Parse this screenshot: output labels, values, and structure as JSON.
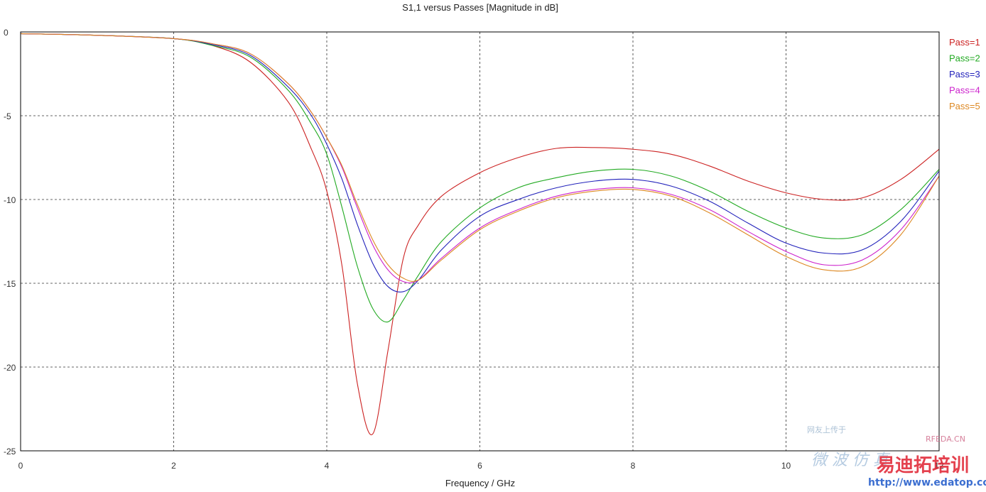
{
  "chart_data": {
    "type": "line",
    "title": "S1,1 versus Passes [Magnitude in dB]",
    "xlabel": "Frequency / GHz",
    "ylabel": "",
    "xlim": [
      0,
      12
    ],
    "ylim": [
      -25,
      0
    ],
    "x_ticks": [
      "0",
      "2",
      "4",
      "6",
      "8",
      "10",
      "12"
    ],
    "y_ticks": [
      "0",
      "-5",
      "-10",
      "-15",
      "-20",
      "-25"
    ],
    "grid": true,
    "legend_position": "right-top",
    "x": [
      0,
      1,
      2,
      2.5,
      3,
      3.5,
      3.8,
      4,
      4.2,
      4.4,
      4.6,
      4.8,
      5,
      5.2,
      5.5,
      6,
      6.5,
      7,
      7.5,
      8,
      8.5,
      9,
      9.5,
      10,
      10.5,
      11,
      11.5,
      12
    ],
    "series": [
      {
        "name": "Pass=1",
        "color": "#cc2222",
        "values": [
          -0.1,
          -0.2,
          -0.4,
          -0.8,
          -1.8,
          -4.2,
          -7.0,
          -9.5,
          -14.0,
          -21.0,
          -24.0,
          -19.0,
          -13.5,
          -11.5,
          -9.8,
          -8.4,
          -7.5,
          -6.95,
          -6.9,
          -7.0,
          -7.3,
          -8.0,
          -8.9,
          -9.6,
          -10.0,
          -9.9,
          -8.8,
          -7.0
        ]
      },
      {
        "name": "Pass=2",
        "color": "#22aa22",
        "values": [
          -0.1,
          -0.2,
          -0.4,
          -0.8,
          -1.5,
          -3.5,
          -5.5,
          -7.3,
          -10.5,
          -14.0,
          -16.5,
          -17.3,
          -16.0,
          -14.5,
          -12.5,
          -10.5,
          -9.3,
          -8.7,
          -8.3,
          -8.2,
          -8.6,
          -9.5,
          -10.7,
          -11.7,
          -12.3,
          -12.1,
          -10.6,
          -8.2
        ]
      },
      {
        "name": "Pass=3",
        "color": "#2222bb",
        "values": [
          -0.1,
          -0.2,
          -0.4,
          -0.75,
          -1.4,
          -3.3,
          -5.0,
          -6.7,
          -8.8,
          -11.5,
          -13.8,
          -15.2,
          -15.5,
          -14.8,
          -13.0,
          -11.0,
          -10.0,
          -9.3,
          -8.9,
          -8.8,
          -9.2,
          -10.1,
          -11.4,
          -12.6,
          -13.2,
          -13.0,
          -11.3,
          -8.3
        ]
      },
      {
        "name": "Pass=4",
        "color": "#cc22cc",
        "values": [
          -0.1,
          -0.2,
          -0.4,
          -0.7,
          -1.3,
          -3.1,
          -4.8,
          -6.3,
          -8.1,
          -10.5,
          -12.7,
          -14.2,
          -14.9,
          -14.8,
          -13.5,
          -11.7,
          -10.6,
          -9.8,
          -9.4,
          -9.3,
          -9.7,
          -10.6,
          -11.9,
          -13.1,
          -13.9,
          -13.6,
          -11.8,
          -8.6
        ]
      },
      {
        "name": "Pass=5",
        "color": "#dd8822",
        "values": [
          -0.1,
          -0.2,
          -0.4,
          -0.7,
          -1.3,
          -3.1,
          -4.8,
          -6.3,
          -8.0,
          -10.3,
          -12.4,
          -13.9,
          -14.7,
          -14.8,
          -13.6,
          -11.8,
          -10.7,
          -9.9,
          -9.5,
          -9.4,
          -9.8,
          -10.8,
          -12.1,
          -13.4,
          -14.2,
          -14.0,
          -12.1,
          -8.6
        ]
      }
    ]
  },
  "watermark": {
    "line1": "网友上传于",
    "line2": "RFEDA.CN",
    "line3": "微 波 仿 真",
    "line4": "易迪拓培训",
    "url": "http://www.edatop.com"
  }
}
